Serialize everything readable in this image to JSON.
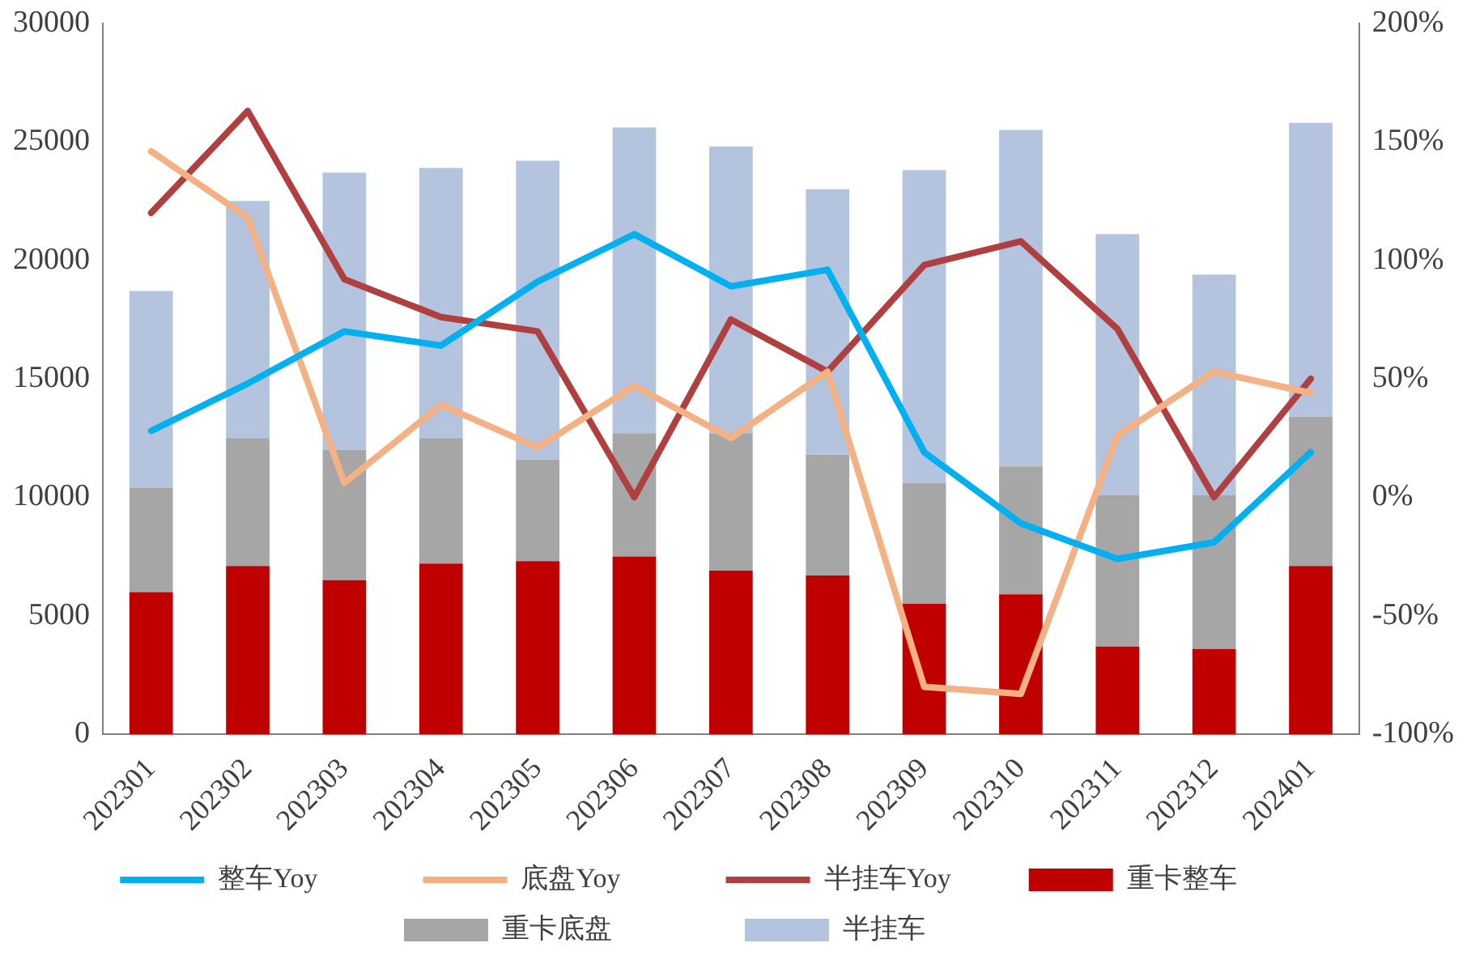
{
  "chart_data": {
    "type": "bar",
    "stacked": true,
    "categories": [
      "202301",
      "202302",
      "202303",
      "202304",
      "202305",
      "202306",
      "202307",
      "202308",
      "202309",
      "202310",
      "202311",
      "202312",
      "202401"
    ],
    "series": [
      {
        "name": "重卡整车",
        "color": "#c00000",
        "values": [
          6000,
          7100,
          6500,
          7200,
          7300,
          7500,
          6900,
          6700,
          5500,
          5900,
          3700,
          3600,
          7100
        ]
      },
      {
        "name": "重卡底盘",
        "color": "#a6a6a6",
        "values": [
          4400,
          5400,
          5500,
          5300,
          4300,
          5200,
          5800,
          5100,
          5100,
          5400,
          6400,
          6500,
          6300
        ]
      },
      {
        "name": "半挂车",
        "color": "#b4c3de",
        "values": [
          8300,
          10000,
          11700,
          11400,
          12600,
          12900,
          12100,
          11200,
          13200,
          14200,
          11000,
          9300,
          12400
        ]
      },
      {
        "name": "整车Yoy",
        "type": "line",
        "axis": "y2",
        "color": "#00b0f0",
        "values": [
          28,
          48,
          70,
          64,
          91,
          111,
          89,
          96,
          19,
          -11,
          -26,
          -19,
          19
        ]
      },
      {
        "name": "底盘Yoy",
        "type": "line",
        "axis": "y2",
        "color": "#f4b183",
        "values": [
          146,
          118,
          6,
          39,
          21,
          47,
          25,
          53,
          -80,
          -83,
          26,
          53,
          44
        ]
      },
      {
        "name": "半挂车Yoy",
        "type": "line",
        "axis": "y2",
        "color": "#b04040",
        "values": [
          120,
          163,
          92,
          76,
          70,
          0,
          75,
          53,
          98,
          108,
          71,
          0,
          50
        ]
      }
    ],
    "ylim": [
      0,
      30000
    ],
    "yticks": [
      0,
      5000,
      10000,
      15000,
      20000,
      25000,
      30000
    ],
    "y2lim": [
      -100,
      200
    ],
    "y2ticks": [
      {
        "value": -100,
        "label": "-100%"
      },
      {
        "value": -50,
        "label": "-50%"
      },
      {
        "value": 0,
        "label": "0%"
      },
      {
        "value": 50,
        "label": "50%"
      },
      {
        "value": 100,
        "label": "100%"
      },
      {
        "value": 150,
        "label": "150%"
      },
      {
        "value": 200,
        "label": "200%"
      }
    ],
    "grid": false,
    "legend": "bottom",
    "marker": "none",
    "line_style": "solid"
  }
}
